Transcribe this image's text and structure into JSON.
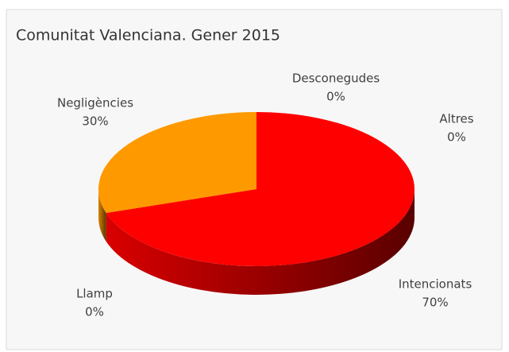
{
  "chart_data": {
    "type": "pie",
    "title": "Comunitat Valenciana. Gener 2015",
    "categories": [
      "Intencionats",
      "Llamp",
      "Negligències",
      "Desconegudes",
      "Altres"
    ],
    "values": [
      70,
      0,
      30,
      0,
      0
    ],
    "value_labels": [
      "70%",
      "0%",
      "30%",
      "0%",
      "0%"
    ],
    "colors": [
      "#ff0000",
      "#c00000",
      "#ff9900",
      "#7f7f7f",
      "#4472c4"
    ]
  }
}
